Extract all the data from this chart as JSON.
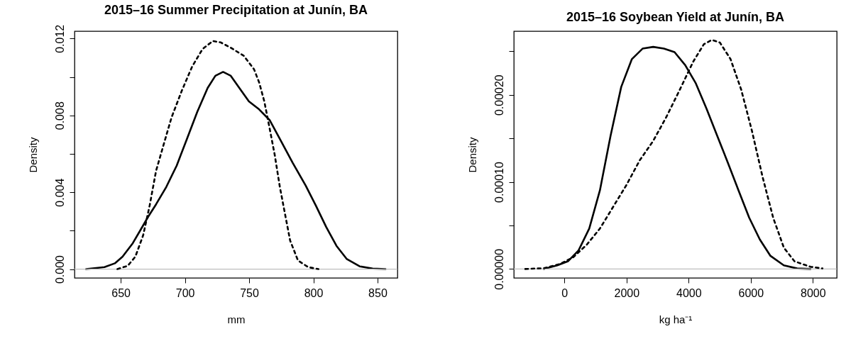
{
  "chart_data": [
    {
      "type": "line",
      "title": "2015–16 Summer Precipitation at Junín, BA",
      "xlabel": "mm",
      "ylabel": "Density",
      "xlim": [
        614,
        865.5
      ],
      "xticks": [
        650,
        700,
        750,
        800,
        850
      ],
      "ylim": [
        -0.00046,
        0.01238
      ],
      "yticks": [
        {
          "value": 0,
          "label": "0.000"
        },
        {
          "value": 0.002,
          "label": null
        },
        {
          "value": 0.004,
          "label": "0.004"
        },
        {
          "value": 0.006,
          "label": null
        },
        {
          "value": 0.008,
          "label": "0.008"
        },
        {
          "value": 0.01,
          "label": null
        },
        {
          "value": 0.012,
          "label": "0.012"
        }
      ],
      "grid": false,
      "marker": "none",
      "ref_lines": [
        {
          "axis": "y",
          "value": 0,
          "color": "#bebebe",
          "line_style": "solid"
        }
      ],
      "series": [
        {
          "color": "#000000",
          "line_style": "solid",
          "x": [
            623,
            637.3,
            645.4,
            651.4,
            659.4,
            665.5,
            671.5,
            677.5,
            685.5,
            693.6,
            701.6,
            709.6,
            717.7,
            723.7,
            729.7,
            735.7,
            743.8,
            749.8,
            757.8,
            765.9,
            773.9,
            783.9,
            794,
            802,
            810,
            818,
            826.1,
            836.1,
            846.2,
            856.2
          ],
          "values": [
            0,
            0.0001,
            0.0003,
            0.00065,
            0.00135,
            0.00205,
            0.00274,
            0.00337,
            0.00428,
            0.00539,
            0.00678,
            0.00818,
            0.00943,
            0.01006,
            0.01026,
            0.01006,
            0.00929,
            0.00873,
            0.00831,
            0.00776,
            0.00678,
            0.00553,
            0.00435,
            0.0033,
            0.00219,
            0.00121,
            0.00052,
            0.00014,
            3e-05,
            0
          ]
        },
        {
          "color": "#000000",
          "line_style": "dashed",
          "x": [
            647.4,
            655.4,
            661.4,
            667.5,
            672.5,
            677.5,
            683.5,
            689.6,
            697.6,
            705.6,
            713.7,
            721.7,
            727.7,
            735.7,
            745.8,
            753.8,
            757.8,
            761.8,
            765.9,
            769.9,
            773.9,
            777.9,
            781.9,
            788,
            796,
            804
          ],
          "values": [
            0,
            0.00017,
            0.00065,
            0.00177,
            0.0033,
            0.00511,
            0.0065,
            0.0079,
            0.00929,
            0.01054,
            0.01145,
            0.01187,
            0.0118,
            0.01152,
            0.0111,
            0.0104,
            0.00971,
            0.00873,
            0.00734,
            0.00595,
            0.00428,
            0.00288,
            0.00149,
            0.00045,
            0.0001,
            0
          ]
        }
      ]
    },
    {
      "type": "line",
      "title": "2015–16 Soybean Yield at Junín, BA",
      "xlabel": "kg ha⁻¹",
      "ylabel": "Density",
      "xlim": [
        -1630,
        8770
      ],
      "xticks": [
        0,
        2000,
        4000,
        6000,
        8000
      ],
      "ylim": [
        -1.03e-05,
        0.000273
      ],
      "yticks": [
        {
          "value": 0,
          "label": "0.00000"
        },
        {
          "value": 5e-05,
          "label": null
        },
        {
          "value": 0.0001,
          "label": "0.00010"
        },
        {
          "value": 0.00015,
          "label": null
        },
        {
          "value": 0.0002,
          "label": "0.00020"
        },
        {
          "value": 0.00025,
          "label": null
        }
      ],
      "grid": false,
      "marker": "none",
      "ref_lines": [
        {
          "axis": "y",
          "value": 0,
          "color": "#bebebe",
          "line_style": "solid"
        }
      ],
      "series": [
        {
          "color": "#000000",
          "line_style": "solid",
          "x": [
            -661,
            -232,
            112,
            455,
            798,
            1142,
            1485,
            1828,
            2172,
            2515,
            2858,
            3202,
            3545,
            3889,
            4232,
            4575,
            4919,
            5262,
            5605,
            5949,
            6292,
            6635,
            7065,
            7494,
            7923
          ],
          "values": [
            0,
            4.1e-06,
            8.8e-06,
            2.13e-05,
            4.64e-05,
            9.03e-05,
            0.000153,
            0.000209,
            0.000241,
            0.000253,
            0.000255,
            0.000253,
            0.000249,
            0.000234,
            0.000213,
            0.000184,
            0.000153,
            0.000122,
            9.03e-05,
            5.89e-05,
            3.39e-05,
            1.5e-05,
            4.1e-06,
            6e-07,
            0
          ]
        },
        {
          "color": "#000000",
          "line_style": "dashed",
          "x": [
            -1262,
            -661,
            -146,
            283,
            712,
            1142,
            1571,
            2000,
            2429,
            2858,
            3288,
            3717,
            4146,
            4489,
            4747,
            5005,
            5348,
            5691,
            6035,
            6378,
            6721,
            7065,
            7408,
            7923,
            8309
          ],
          "values": [
            0,
            9e-07,
            5.6e-06,
            1.35e-05,
            2.76e-05,
            4.64e-05,
            7.15e-05,
            9.66e-05,
            0.000125,
            0.000147,
            0.000175,
            0.000206,
            0.000238,
            0.000258,
            0.000263,
            0.00026,
            0.000241,
            0.000206,
            0.000159,
            0.000106,
            5.89e-05,
            2.45e-05,
            8.8e-06,
            2.5e-06,
            6e-07
          ]
        }
      ]
    }
  ]
}
